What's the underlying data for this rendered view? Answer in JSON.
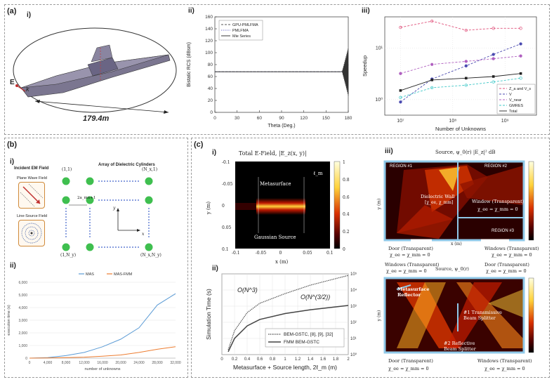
{
  "panel_a": {
    "label": "(a)",
    "i": {
      "label": "i)",
      "e_label": "E",
      "k_label": "k",
      "dim_label": "179.4m"
    },
    "ii": {
      "label": "ii)",
      "chart_data": {
        "type": "line",
        "xlabel": "Theta (Deg.)",
        "ylabel": "Bistatic RCS (dBsm)",
        "xlim": [
          0,
          180
        ],
        "ylim": [
          0,
          160
        ],
        "x_ticks": [
          "0",
          "30",
          "60",
          "90",
          "120",
          "150",
          "180"
        ],
        "y_ticks": [
          "0",
          "20",
          "40",
          "60",
          "80",
          "100",
          "120",
          "140",
          "160"
        ],
        "legend": [
          "GPU-PMLFMA",
          "PMLFMA",
          "Mie Series"
        ],
        "series": [
          {
            "name": "GPU-PMLFMA",
            "x": [
              0,
              30,
              60,
              90,
              120,
              150,
              170,
              176,
              180
            ],
            "y": [
              68,
              68,
              68,
              68,
              68,
              68,
              68,
              70,
              80
            ]
          },
          {
            "name": "PMLFMA",
            "x": [
              0,
              30,
              60,
              90,
              120,
              150,
              170,
              176,
              180
            ],
            "y": [
              68,
              68,
              68,
              68,
              68,
              68,
              68,
              70,
              80
            ]
          },
          {
            "name": "Mie Series",
            "x": [
              0,
              30,
              60,
              90,
              120,
              150,
              170,
              176,
              180
            ],
            "y": [
              68,
              68,
              68,
              68,
              68,
              68,
              68,
              70,
              80
            ]
          }
        ]
      }
    },
    "iii": {
      "label": "iii)",
      "chart_data": {
        "type": "line",
        "xlabel": "Number of Unknowns",
        "ylabel": "Speedup",
        "x_ticks": [
          "10^7",
          "10^8",
          "10^9"
        ],
        "y_ticks": [
          "10^0",
          "10^1"
        ],
        "x": [
          10000000,
          40000000,
          180000000,
          600000000,
          2000000000
        ],
        "legend": [
          "Z_a and V_s",
          "V",
          "V_near",
          "GMRES",
          "Total"
        ],
        "series": [
          {
            "name": "Z_a and V_s",
            "color": "#e0507a",
            "values": [
              25,
              33,
              22,
              24,
              24
            ]
          },
          {
            "name": "V",
            "color": "#4a4ab0",
            "values": [
              0.9,
              2.5,
              4.5,
              7.5,
              12
            ]
          },
          {
            "name": "V_near",
            "color": "#b060c0",
            "values": [
              3.2,
              4.8,
              5.5,
              6.2,
              7
            ]
          },
          {
            "name": "GMRES",
            "color": "#40c8c8",
            "values": [
              1.1,
              1.7,
              1.9,
              2.2,
              2.6
            ]
          },
          {
            "name": "Total",
            "color": "#222222",
            "values": [
              1.5,
              2.4,
              2.6,
              2.8,
              3.2
            ]
          }
        ]
      }
    }
  },
  "panel_b": {
    "label": "(b)",
    "i": {
      "label": "i)",
      "incident_title": "Incident EM Field",
      "plane_wave": "Plane Wave Field",
      "line_source": "Line-Source Field",
      "array_title": "Array of Dielectric Cylinders",
      "corner_tl": "(1,1)",
      "corner_tr": "(N_x,1)",
      "corner_bl": "(1,N_y)",
      "corner_br": "(N_x,N_y)",
      "spacing": "2a_mn+1",
      "axis_x": "x",
      "axis_y": "y"
    },
    "ii": {
      "label": "ii)",
      "chart_data": {
        "type": "line",
        "xlabel": "number of unknowns",
        "ylabel": "execution time (s)",
        "xlim": [
          0,
          32000
        ],
        "ylim": [
          0,
          6000
        ],
        "x_ticks": [
          "0",
          "4,000",
          "8,000",
          "12,000",
          "16,000",
          "20,000",
          "24,000",
          "28,000",
          "32,000"
        ],
        "y_ticks": [
          "0",
          "1,000",
          "2,000",
          "3,000",
          "4,000",
          "5,000",
          "6,000"
        ],
        "legend": [
          "MAS",
          "MAS-FMM"
        ],
        "series": [
          {
            "name": "MAS",
            "color": "#5b9bd5",
            "x": [
              0,
              4000,
              8000,
              12000,
              16000,
              20000,
              24000,
              28000,
              32000
            ],
            "y": [
              0,
              40,
              200,
              450,
              900,
              1500,
              2400,
              4200,
              5100
            ]
          },
          {
            "name": "MAS-FMM",
            "color": "#ed7d31",
            "x": [
              0,
              4000,
              8000,
              12000,
              16000,
              20000,
              24000,
              28000,
              32000
            ],
            "y": [
              0,
              10,
              40,
              80,
              150,
              250,
              450,
              700,
              900
            ]
          }
        ]
      }
    }
  },
  "panel_c": {
    "label": "(c)",
    "i": {
      "label": "i)",
      "title": "Total E-Field, |E_z(x, y)|",
      "metasurface": "Metasurface",
      "gaussian": "Gaussian Source",
      "lm": "ℓ_m",
      "xlabel": "x (m)",
      "ylabel": "y (m)",
      "x_ticks": [
        "-0.1",
        "-0.05",
        "0",
        "0.05",
        "0.1"
      ],
      "y_ticks": [
        "-0.1",
        "-0.05",
        "0",
        "0.05",
        "0.1"
      ],
      "cbar_ticks": [
        "1",
        "0.8",
        "0.6",
        "0.4",
        "0.2",
        "0"
      ]
    },
    "ii": {
      "label": "ii)",
      "chart_data": {
        "type": "line",
        "xlabel": "Metasurface + Source length, 2ℓ_m (m)",
        "ylabel": "Simulation Time (s)",
        "x_ticks": [
          "0",
          "0.2",
          "0.4",
          "0.6",
          "0.8",
          "1",
          "1.2",
          "1.4",
          "1.6",
          "1.8",
          "2"
        ],
        "y_ticks": [
          "10^0",
          "10^1",
          "10^2",
          "10^3",
          "10^4",
          "10^5"
        ],
        "annotations": [
          "O(N^3)",
          "O(N^(3/2))"
        ],
        "legend": [
          "BEM-GSTC, [8], [9], [32]",
          "FMM BEM-GSTC"
        ],
        "series": [
          {
            "name": "BEM-GSTC, [8], [9], [32]",
            "x": [
              0.1,
              0.2,
              0.4,
              0.6,
              1.0,
              1.4,
              2.0
            ],
            "values": [
              2,
              30,
              400,
              1500,
              6000,
              20000,
              80000
            ]
          },
          {
            "name": "FMM BEM-GSTC",
            "x": [
              0.1,
              0.2,
              0.4,
              0.6,
              1.0,
              1.4,
              2.0
            ],
            "values": [
              1.5,
              10,
              60,
              150,
              350,
              600,
              1100
            ]
          }
        ]
      }
    },
    "iii": {
      "label": "iii)",
      "top_title": "Source, ψ_0(r)   |E_z|² dB",
      "region1": "REGION #1",
      "region2": "REGION #2",
      "region3": "REGION #3",
      "dielectric_wall": "Dielectric Wall",
      "dielectric_sub": "[χ_ee, χ_mm]",
      "window": "Window (Transparent)",
      "window_sub": "χ_ee = χ_mm = 0",
      "door1": "Door (Transparent)",
      "door1_sub": "χ_ee = χ_mm = 0",
      "windows1": "Windows (Transparent)",
      "windows1_sub": "χ_ee = χ_mm = 0",
      "b_windows_top": "Windows (Transparent)",
      "b_source": "Source, ψ_0(r)",
      "b_door_top": "Door (Transparent)",
      "b_chi_left": "χ_ee = χ_mm = 0",
      "b_chi_right": "χ_ee = χ_mm = 0",
      "metasurface_reflector": "Metasurface Reflector",
      "transmissive": "#1 Transmissive Beam Splitter",
      "reflective": "#2 Reflective Beam Splitter",
      "b_door_bottom": "Door (Transparent)",
      "b_door_bottom_sub": "χ_ee = χ_mm = 0",
      "b_windows_bottom": "Windows (Transparent)",
      "b_windows_bottom_sub": "χ_ee = χ_mm = 0",
      "x_axis": "x (m)",
      "y_axis": "y (m)"
    }
  }
}
